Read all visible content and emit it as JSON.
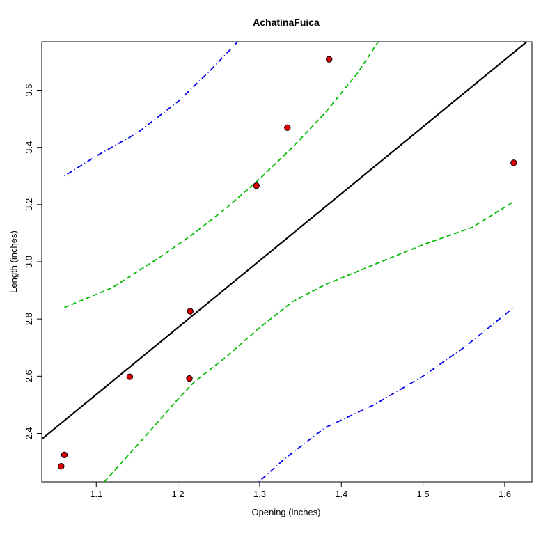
{
  "chart_data": {
    "type": "scatter",
    "title": "AchatinaFuica",
    "xlabel": "Opening (inches)",
    "ylabel": "Length (inches)",
    "xlim": [
      1.0333,
      1.6333
    ],
    "ylim": [
      2.2308,
      3.7692
    ],
    "grid": false,
    "x_ticks": [
      1.1,
      1.2,
      1.3,
      1.4,
      1.5,
      1.6
    ],
    "x_tick_labels": [
      "1.1",
      "1.2",
      "1.3",
      "1.4",
      "1.5",
      "1.6"
    ],
    "y_ticks": [
      2.4,
      2.6,
      2.8,
      3.0,
      3.2,
      3.4,
      3.6
    ],
    "y_tick_labels": [
      "2.4",
      "2.6",
      "2.8",
      "3.0",
      "3.2",
      "3.4",
      "3.6"
    ],
    "points": {
      "name": "observations",
      "color": "#dd0000",
      "x": [
        1.057,
        1.061,
        1.141,
        1.214,
        1.215,
        1.296,
        1.334,
        1.385,
        1.611
      ],
      "y": [
        2.285,
        2.325,
        2.598,
        2.592,
        2.827,
        3.266,
        3.469,
        3.708,
        3.346
      ]
    },
    "series": [
      {
        "name": "regression line",
        "style": "solid",
        "color": "#000000",
        "x": [
          1.0333,
          1.6333
        ],
        "y": [
          2.38,
          3.784
        ]
      },
      {
        "name": "confidence upper",
        "style": "dashed",
        "color": "#00bb00",
        "x": [
          1.061,
          1.12,
          1.18,
          1.22,
          1.26,
          1.3,
          1.34,
          1.38,
          1.42,
          1.445
        ],
        "y": [
          2.84,
          2.91,
          3.02,
          3.1,
          3.19,
          3.29,
          3.4,
          3.52,
          3.66,
          3.769
        ]
      },
      {
        "name": "confidence lower",
        "style": "dashed",
        "color": "#00bb00",
        "x": [
          1.11,
          1.16,
          1.2,
          1.22,
          1.26,
          1.3,
          1.34,
          1.38,
          1.44,
          1.5,
          1.56,
          1.611
        ],
        "y": [
          2.231,
          2.39,
          2.52,
          2.58,
          2.67,
          2.77,
          2.86,
          2.92,
          2.99,
          3.06,
          3.12,
          3.21
        ]
      },
      {
        "name": "prediction upper",
        "style": "dotdash",
        "color": "#0000ee",
        "x": [
          1.061,
          1.1,
          1.15,
          1.2,
          1.24,
          1.273
        ],
        "y": [
          3.3,
          3.37,
          3.45,
          3.56,
          3.67,
          3.769
        ]
      },
      {
        "name": "prediction lower",
        "style": "dotdash",
        "color": "#0000ee",
        "x": [
          1.299,
          1.33,
          1.38,
          1.44,
          1.5,
          1.55,
          1.611
        ],
        "y": [
          2.231,
          2.31,
          2.42,
          2.5,
          2.6,
          2.7,
          2.84
        ]
      }
    ]
  }
}
